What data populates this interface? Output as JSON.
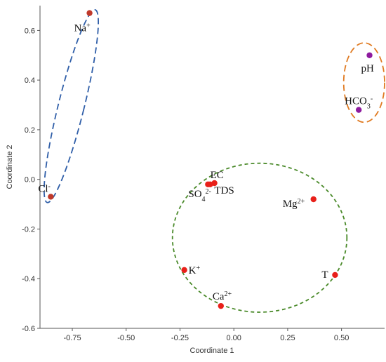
{
  "chart_data": {
    "type": "scatter",
    "xlabel": "Coordinate 1",
    "ylabel": "Coordinate 2",
    "xlim": [
      -0.9,
      0.7
    ],
    "ylim": [
      -0.6,
      0.7
    ],
    "xticks": [
      "-0.75",
      "-0.50",
      "-0.25",
      "0.00",
      "0.25",
      "0.50"
    ],
    "xtick_values": [
      -0.75,
      -0.5,
      -0.25,
      0,
      0.25,
      0.5
    ],
    "yticks": [
      "0.6",
      "0.4",
      "0.2",
      "0.0",
      "-0.2",
      "-0.4",
      "-0.6"
    ],
    "ytick_values": [
      0.6,
      0.4,
      0.2,
      0,
      -0.2,
      -0.4,
      -0.6
    ],
    "grid": false,
    "points": [
      {
        "id": "na",
        "label": "Na⁺",
        "x": -0.67,
        "y": 0.67,
        "color": "#c0392b",
        "text": [
          {
            "t": "Na"
          },
          {
            "t": "+",
            "s": "sup"
          }
        ]
      },
      {
        "id": "cl",
        "label": "Cl⁻",
        "x": -0.85,
        "y": -0.07,
        "color": "#c0392b",
        "text": [
          {
            "t": "Cl"
          },
          {
            "t": "-",
            "s": "sup"
          }
        ]
      },
      {
        "id": "ph",
        "label": "pH",
        "x": 0.63,
        "y": 0.5,
        "color": "#8e1a9e",
        "text": [
          {
            "t": "pH"
          }
        ]
      },
      {
        "id": "hco3",
        "label": "HCO₃⁻",
        "x": 0.58,
        "y": 0.28,
        "color": "#8e1a9e",
        "text": [
          {
            "t": "HCO"
          },
          {
            "t": "3",
            "s": "sub"
          },
          {
            "t": "-",
            "s": "sup"
          }
        ]
      },
      {
        "id": "ec",
        "label": "EC",
        "x": -0.09,
        "y": -0.015,
        "color": "#e8201a",
        "text": [
          {
            "t": "EC"
          }
        ]
      },
      {
        "id": "tds",
        "label": "TDS",
        "x": -0.11,
        "y": -0.02,
        "color": "#e8201a",
        "text": [
          {
            "t": "TDS"
          }
        ]
      },
      {
        "id": "so4",
        "label": "SO₄²⁻",
        "x": -0.12,
        "y": -0.02,
        "color": "#e8201a",
        "text": [
          {
            "t": "SO"
          },
          {
            "t": "4",
            "s": "sub"
          },
          {
            "t": "2-",
            "s": "sup"
          }
        ]
      },
      {
        "id": "mg",
        "label": "Mg²⁺",
        "x": 0.37,
        "y": -0.08,
        "color": "#e8201a",
        "text": [
          {
            "t": "Mg"
          },
          {
            "t": "2+",
            "s": "sup"
          }
        ]
      },
      {
        "id": "k",
        "label": "K⁺",
        "x": -0.23,
        "y": -0.365,
        "color": "#e8201a",
        "text": [
          {
            "t": "K"
          },
          {
            "t": "+",
            "s": "sup"
          }
        ]
      },
      {
        "id": "t",
        "label": "T",
        "x": 0.47,
        "y": -0.385,
        "color": "#e8201a",
        "text": [
          {
            "t": "T"
          }
        ]
      },
      {
        "id": "ca",
        "label": "Ca²⁺",
        "x": -0.06,
        "y": -0.51,
        "color": "#e8201a",
        "text": [
          {
            "t": "Ca"
          },
          {
            "t": "2+",
            "s": "sup"
          }
        ]
      }
    ],
    "clusters": [
      {
        "id": "blue",
        "color": "#2f5ea8",
        "dash": "9,5",
        "cx": -0.755,
        "cy": 0.295,
        "rx": 0.06,
        "ry": 0.4,
        "rotate": 14
      },
      {
        "id": "orange",
        "color": "#e07b22",
        "dash": "9,5",
        "cx": 0.605,
        "cy": 0.39,
        "rx": 0.095,
        "ry": 0.16,
        "rotate": 0
      },
      {
        "id": "green",
        "color": "#4a8a2a",
        "dash": "5,4",
        "cx": 0.12,
        "cy": -0.235,
        "rx": 0.405,
        "ry": 0.3,
        "rotate": 0
      }
    ]
  }
}
